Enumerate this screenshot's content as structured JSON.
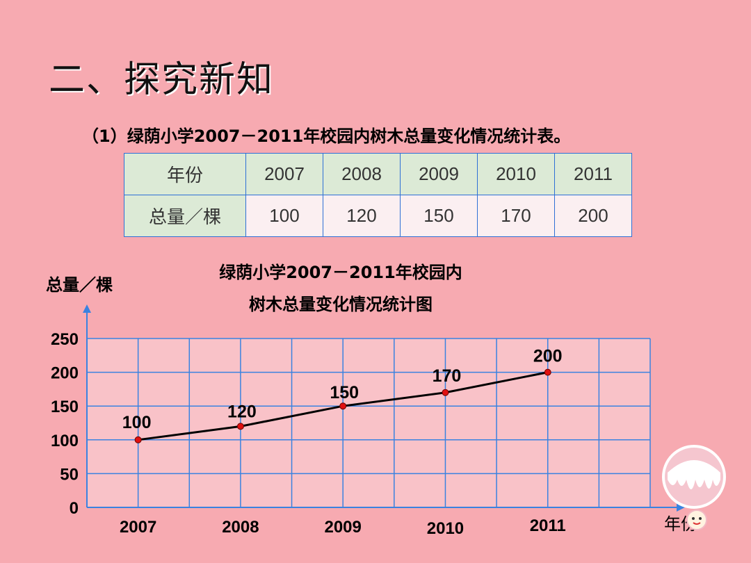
{
  "slide": {
    "heading": "二、探究新知",
    "subtitle": "（1）绿荫小学2007－2011年校园内树木总量变化情况统计表。"
  },
  "table": {
    "row1_header": "年份",
    "row2_header": "总量／棵",
    "years": [
      "2007",
      "2008",
      "2009",
      "2010",
      "2011"
    ],
    "counts": [
      "100",
      "120",
      "150",
      "170",
      "200"
    ]
  },
  "chart_data": {
    "type": "line",
    "title_line1": "绿荫小学2007－2011年校园内",
    "title_line2": "树木总量变化情况统计图",
    "ylabel": "总量／棵",
    "xlabel": "年份",
    "categories": [
      "2007",
      "2008",
      "2009",
      "2010",
      "2011"
    ],
    "values": [
      100,
      120,
      150,
      170,
      200
    ],
    "data_labels": [
      "100",
      "120",
      "150",
      "170",
      "200"
    ],
    "yticks": [
      "0",
      "50",
      "100",
      "150",
      "200",
      "250"
    ],
    "ylim": [
      0,
      250
    ],
    "grid": true,
    "colors": {
      "grid": "#3a82e0",
      "line": "#000000",
      "point": "#e01010"
    }
  }
}
